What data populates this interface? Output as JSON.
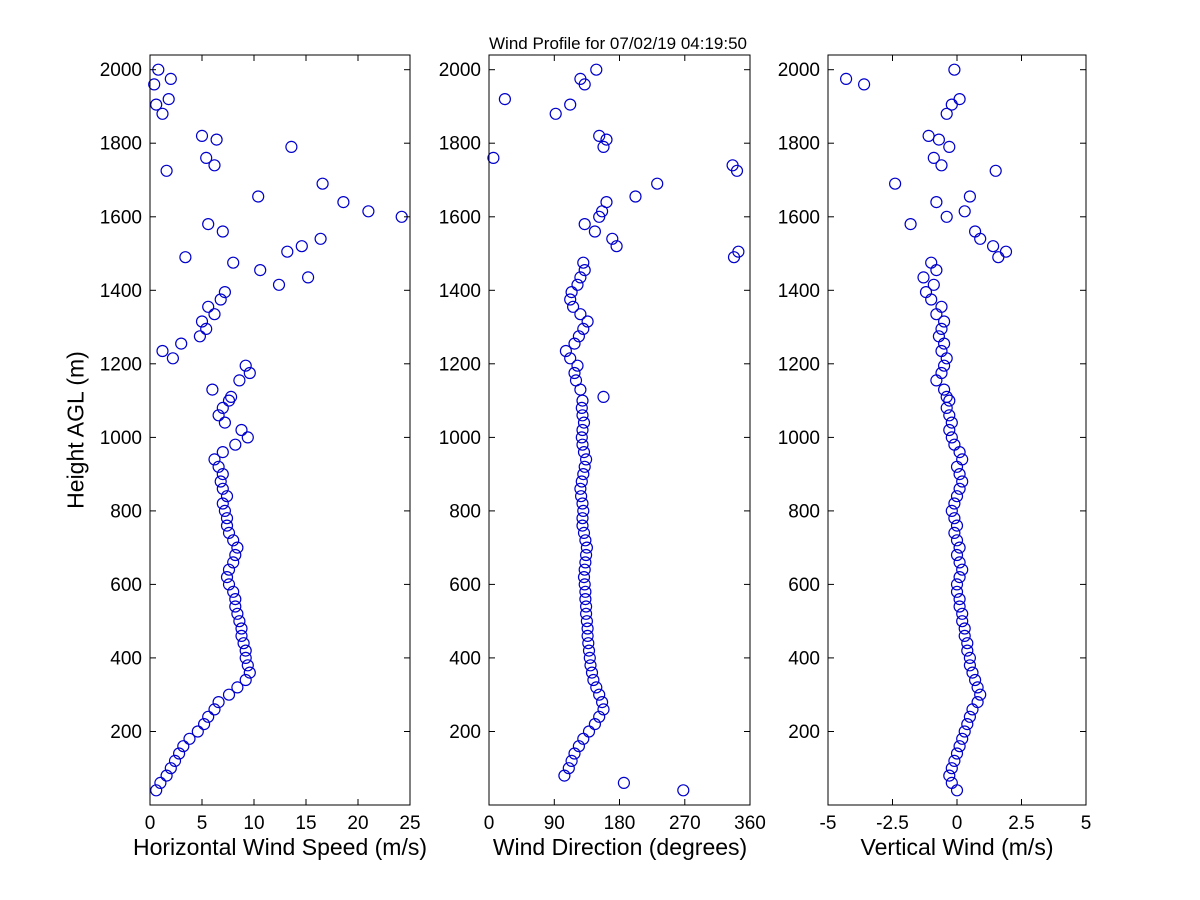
{
  "figure": {
    "title": "Wind Profile for  07/02/19 04:19:50",
    "marker_color": "#0000cc",
    "axis_color": "#000000",
    "background_color": "#ffffff"
  },
  "chart_data": {
    "type": "scatter",
    "title": "Wind Profile for  07/02/19 04:19:50",
    "marker": "open-circle",
    "grid": false,
    "legend": "none",
    "shared_y": {
      "label": "Height AGL (m)",
      "ylim": [
        0,
        2040
      ],
      "yticks": [
        200,
        400,
        600,
        800,
        1000,
        1200,
        1400,
        1600,
        1800,
        2000
      ],
      "yticklabels": [
        "200",
        "400",
        "600",
        "800",
        "1000",
        "1200",
        "1400",
        "1600",
        "1800",
        "2000"
      ]
    },
    "subplots": [
      {
        "id": "speed",
        "xlabel": "Horizontal Wind Speed (m/s)",
        "xlim": [
          0,
          25
        ],
        "xticks": [
          0,
          5,
          10,
          15,
          20,
          25
        ],
        "xticklabels": [
          "0",
          "5",
          "10",
          "15",
          "20",
          "25"
        ]
      },
      {
        "id": "direction",
        "xlabel": "Wind Direction (degrees)",
        "xlim": [
          0,
          360
        ],
        "xticks": [
          0,
          90,
          180,
          270,
          360
        ],
        "xticklabels": [
          "0",
          "90",
          "180",
          "270",
          "360"
        ]
      },
      {
        "id": "vertical",
        "xlabel": "Vertical Wind (m/s)",
        "xlim": [
          -5,
          5
        ],
        "xticks": [
          -5,
          -2.5,
          0,
          2.5,
          5
        ],
        "xticklabels": [
          "-5",
          "-2.5",
          "0",
          "2.5",
          "5"
        ]
      }
    ],
    "heights_m": [
      40,
      60,
      80,
      100,
      120,
      140,
      160,
      180,
      200,
      220,
      240,
      260,
      280,
      300,
      320,
      340,
      360,
      380,
      400,
      420,
      440,
      460,
      480,
      500,
      520,
      540,
      560,
      580,
      600,
      620,
      640,
      660,
      680,
      700,
      720,
      740,
      760,
      780,
      800,
      820,
      840,
      860,
      880,
      900,
      920,
      940,
      960,
      980,
      1000,
      1020,
      1040,
      1060,
      1080,
      1100,
      1110,
      1130,
      1155,
      1175,
      1195,
      1215,
      1235,
      1255,
      1275,
      1295,
      1315,
      1335,
      1355,
      1375,
      1395,
      1415,
      1435,
      1455,
      1475,
      1490,
      1505,
      1520,
      1540,
      1560,
      1580,
      1600,
      1615,
      1640,
      1655,
      1690,
      1725,
      1740,
      1760,
      1790,
      1810,
      1820,
      1880,
      1905,
      1920,
      1960,
      1975,
      2000
    ],
    "series": {
      "speed": [
        0.6,
        1.0,
        1.6,
        2.0,
        2.4,
        2.8,
        3.2,
        3.8,
        4.6,
        5.2,
        5.6,
        6.2,
        6.6,
        7.6,
        8.4,
        9.2,
        9.6,
        9.4,
        9.2,
        9.2,
        9.0,
        8.8,
        8.8,
        8.6,
        8.4,
        8.2,
        8.2,
        8.0,
        7.6,
        7.4,
        7.6,
        8.0,
        8.2,
        8.4,
        8.0,
        7.6,
        7.4,
        7.4,
        7.2,
        7.0,
        7.4,
        7.0,
        6.8,
        7.0,
        6.6,
        6.2,
        7.0,
        8.2,
        9.4,
        8.8,
        7.2,
        6.6,
        7.0,
        7.6,
        7.8,
        6.0,
        8.6,
        9.6,
        9.2,
        2.2,
        1.2,
        3.0,
        4.8,
        5.4,
        5.0,
        6.2,
        5.6,
        6.8,
        7.2,
        12.4,
        15.2,
        10.6,
        8.0,
        3.4,
        13.2,
        14.6,
        16.4,
        7.0,
        5.6,
        24.2,
        21.0,
        18.6,
        10.4,
        16.6,
        1.6,
        6.2,
        5.4,
        13.6,
        6.4,
        5.0,
        1.2,
        0.6,
        1.8,
        0.4,
        2.0,
        0.8
      ],
      "direction": [
        268,
        186,
        104,
        110,
        114,
        118,
        124,
        130,
        138,
        146,
        152,
        158,
        156,
        152,
        148,
        144,
        142,
        140,
        139,
        138,
        137,
        136,
        136,
        135,
        134,
        134,
        133,
        133,
        132,
        131,
        132,
        133,
        134,
        135,
        133,
        131,
        129,
        129,
        130,
        129,
        127,
        126,
        128,
        130,
        132,
        134,
        131,
        129,
        128,
        129,
        131,
        129,
        128,
        129,
        158,
        126,
        120,
        118,
        122,
        112,
        106,
        118,
        124,
        130,
        136,
        126,
        116,
        112,
        114,
        122,
        126,
        132,
        130,
        338,
        344,
        176,
        170,
        146,
        132,
        152,
        156,
        162,
        202,
        232,
        342,
        336,
        6,
        158,
        162,
        152,
        92,
        112,
        22,
        132,
        126,
        148
      ],
      "vertical": [
        0.0,
        -0.2,
        -0.3,
        -0.2,
        -0.1,
        0.0,
        0.1,
        0.2,
        0.3,
        0.4,
        0.5,
        0.6,
        0.8,
        0.9,
        0.8,
        0.7,
        0.6,
        0.5,
        0.5,
        0.4,
        0.4,
        0.3,
        0.3,
        0.2,
        0.2,
        0.1,
        0.1,
        0.0,
        0.0,
        0.1,
        0.2,
        0.1,
        0.0,
        0.1,
        0.0,
        -0.1,
        0.0,
        -0.1,
        -0.2,
        -0.1,
        0.0,
        0.1,
        0.2,
        0.1,
        0.0,
        0.2,
        0.1,
        -0.1,
        -0.2,
        -0.3,
        -0.2,
        -0.3,
        -0.4,
        -0.3,
        -0.4,
        -0.5,
        -0.8,
        -0.6,
        -0.5,
        -0.4,
        -0.6,
        -0.5,
        -0.7,
        -0.6,
        -0.5,
        -0.8,
        -0.6,
        -1.0,
        -1.2,
        -0.9,
        -1.3,
        -0.8,
        -1.0,
        1.6,
        1.9,
        1.4,
        0.9,
        0.7,
        -1.8,
        -0.4,
        0.3,
        -0.8,
        0.5,
        -2.4,
        1.5,
        -0.6,
        -0.9,
        -0.3,
        -0.7,
        -1.1,
        -0.4,
        -0.2,
        0.1,
        -3.6,
        -4.3,
        -0.1
      ]
    }
  }
}
